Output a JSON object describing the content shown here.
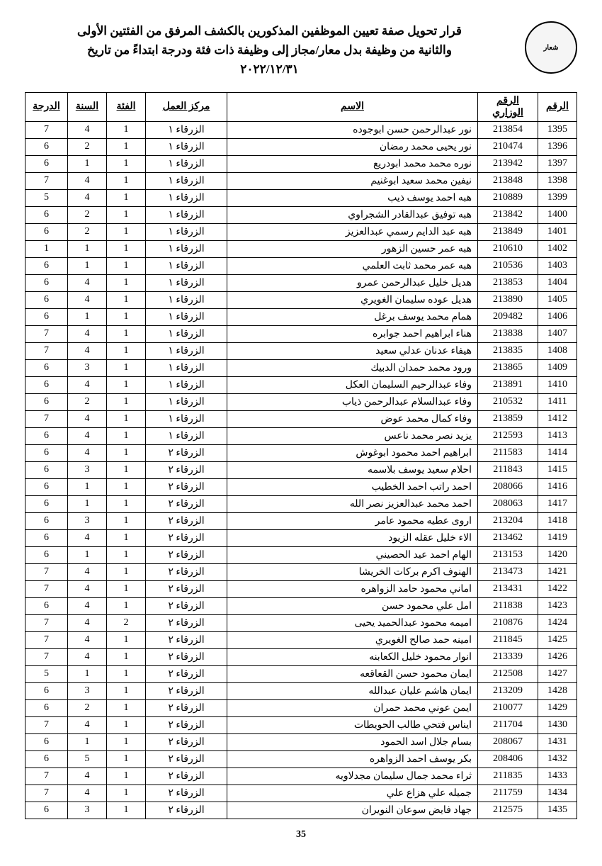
{
  "title_line1": "قرار تحويل صفة تعيين الموظفين المذكورين بالكشف المرفق من الفئتين الأولى",
  "title_line2": "والثانية من وظيفة بدل معار/مجاز إلى وظيفة ذات فئة ودرجة  ابتداءً من تاريخ",
  "title_line3": "٢٠٢٢/١٢/٣١",
  "logo_text": "شعار",
  "page_number": "35",
  "columns": [
    "الرقم",
    "الرقم الوزاري",
    "الاسم",
    "مركز العمل",
    "الفئة",
    "السنة",
    "الدرجة"
  ],
  "rows": [
    {
      "rank": "1395",
      "minid": "213854",
      "name": "نور عبدالرحمن حسن ابوجوده",
      "center": "الزرقاء ١",
      "cat": "1",
      "year": "4",
      "grade": "7"
    },
    {
      "rank": "1396",
      "minid": "210474",
      "name": "نور يحيى محمد رمضان",
      "center": "الزرقاء ١",
      "cat": "1",
      "year": "2",
      "grade": "6"
    },
    {
      "rank": "1397",
      "minid": "213942",
      "name": "نوره محمد محمد ابودريع",
      "center": "الزرقاء ١",
      "cat": "1",
      "year": "1",
      "grade": "6"
    },
    {
      "rank": "1398",
      "minid": "213848",
      "name": "نيفين محمد سعيد ابوغنيم",
      "center": "الزرقاء ١",
      "cat": "1",
      "year": "4",
      "grade": "7"
    },
    {
      "rank": "1399",
      "minid": "210889",
      "name": "هبه احمد يوسف ذيب",
      "center": "الزرقاء ١",
      "cat": "1",
      "year": "4",
      "grade": "5"
    },
    {
      "rank": "1400",
      "minid": "213842",
      "name": "هبه توفيق عبدالقادر الشجراوي",
      "center": "الزرقاء ١",
      "cat": "1",
      "year": "2",
      "grade": "6"
    },
    {
      "rank": "1401",
      "minid": "213849",
      "name": "هبه عبد الدايم رسمي عبدالعزيز",
      "center": "الزرقاء ١",
      "cat": "1",
      "year": "2",
      "grade": "6"
    },
    {
      "rank": "1402",
      "minid": "210610",
      "name": "هبه عمر حسين الزهور",
      "center": "الزرقاء ١",
      "cat": "1",
      "year": "1",
      "grade": "1"
    },
    {
      "rank": "1403",
      "minid": "210536",
      "name": "هبه عمر محمد ثابت العلمي",
      "center": "الزرقاء ١",
      "cat": "1",
      "year": "1",
      "grade": "6"
    },
    {
      "rank": "1404",
      "minid": "213853",
      "name": "هديل خليل عبدالرحمن عمرو",
      "center": "الزرقاء ١",
      "cat": "1",
      "year": "4",
      "grade": "6"
    },
    {
      "rank": "1405",
      "minid": "213890",
      "name": "هديل عوده سليمان الغويري",
      "center": "الزرقاء ١",
      "cat": "1",
      "year": "4",
      "grade": "6"
    },
    {
      "rank": "1406",
      "minid": "209482",
      "name": "همام محمد يوسف برغل",
      "center": "الزرقاء ١",
      "cat": "1",
      "year": "1",
      "grade": "6"
    },
    {
      "rank": "1407",
      "minid": "213838",
      "name": "هناء ابراهيم احمد جوابره",
      "center": "الزرقاء ١",
      "cat": "1",
      "year": "4",
      "grade": "7"
    },
    {
      "rank": "1408",
      "minid": "213835",
      "name": "هيفاء عدنان عدلي سعيد",
      "center": "الزرقاء ١",
      "cat": "1",
      "year": "4",
      "grade": "7"
    },
    {
      "rank": "1409",
      "minid": "213865",
      "name": "ورود محمد حمدان الدبيك",
      "center": "الزرقاء ١",
      "cat": "1",
      "year": "3",
      "grade": "6"
    },
    {
      "rank": "1410",
      "minid": "213891",
      "name": "وفاء عبدالرحيم السليمان العكل",
      "center": "الزرقاء ١",
      "cat": "1",
      "year": "4",
      "grade": "6"
    },
    {
      "rank": "1411",
      "minid": "210532",
      "name": "وفاء عبدالسلام عبدالرحمن ذياب",
      "center": "الزرقاء ١",
      "cat": "1",
      "year": "2",
      "grade": "6"
    },
    {
      "rank": "1412",
      "minid": "213859",
      "name": "وفاء كمال محمد عوض",
      "center": "الزرقاء ١",
      "cat": "1",
      "year": "4",
      "grade": "7"
    },
    {
      "rank": "1413",
      "minid": "212593",
      "name": "يزيد نصر محمد ناعس",
      "center": "الزرقاء ١",
      "cat": "1",
      "year": "4",
      "grade": "6"
    },
    {
      "rank": "1414",
      "minid": "211583",
      "name": "ابراهيم احمد محمود ابوغوش",
      "center": "الزرقاء ٢",
      "cat": "1",
      "year": "4",
      "grade": "6"
    },
    {
      "rank": "1415",
      "minid": "211843",
      "name": "احلام سعيد يوسف بلاسمه",
      "center": "الزرقاء ٢",
      "cat": "1",
      "year": "3",
      "grade": "6"
    },
    {
      "rank": "1416",
      "minid": "208066",
      "name": "احمد راتب احمد الخطيب",
      "center": "الزرقاء ٢",
      "cat": "1",
      "year": "1",
      "grade": "6"
    },
    {
      "rank": "1417",
      "minid": "208063",
      "name": "احمد محمد عبدالعزيز نصر الله",
      "center": "الزرقاء ٢",
      "cat": "1",
      "year": "1",
      "grade": "6"
    },
    {
      "rank": "1418",
      "minid": "213204",
      "name": "اروى عطيه محمود عامر",
      "center": "الزرقاء ٢",
      "cat": "1",
      "year": "3",
      "grade": "6"
    },
    {
      "rank": "1419",
      "minid": "213462",
      "name": "الاء خليل عقله الزيود",
      "center": "الزرقاء ٢",
      "cat": "1",
      "year": "4",
      "grade": "6"
    },
    {
      "rank": "1420",
      "minid": "213153",
      "name": "الهام احمد عيد الحصيني",
      "center": "الزرقاء ٢",
      "cat": "1",
      "year": "1",
      "grade": "6"
    },
    {
      "rank": "1421",
      "minid": "213473",
      "name": "الهنوف اكرم بركات الخريشا",
      "center": "الزرقاء ٢",
      "cat": "1",
      "year": "4",
      "grade": "7"
    },
    {
      "rank": "1422",
      "minid": "213431",
      "name": "اماني محمود حامد الزواهره",
      "center": "الزرقاء ٢",
      "cat": "1",
      "year": "4",
      "grade": "7"
    },
    {
      "rank": "1423",
      "minid": "211838",
      "name": "امل علي محمود حسن",
      "center": "الزرقاء ٢",
      "cat": "1",
      "year": "4",
      "grade": "6"
    },
    {
      "rank": "1424",
      "minid": "210876",
      "name": "اميمه محمود عبدالحميد يحيى",
      "center": "الزرقاء ٢",
      "cat": "2",
      "year": "4",
      "grade": "7"
    },
    {
      "rank": "1425",
      "minid": "211845",
      "name": "امينه حمد صالح الغويري",
      "center": "الزرقاء ٢",
      "cat": "1",
      "year": "4",
      "grade": "7"
    },
    {
      "rank": "1426",
      "minid": "213339",
      "name": "انوار محمود خليل الكعابنه",
      "center": "الزرقاء ٢",
      "cat": "1",
      "year": "4",
      "grade": "7"
    },
    {
      "rank": "1427",
      "minid": "212508",
      "name": "ايمان محمود حسن القعاقعه",
      "center": "الزرقاء ٢",
      "cat": "1",
      "year": "1",
      "grade": "5"
    },
    {
      "rank": "1428",
      "minid": "213209",
      "name": "ايمان هاشم عليان عبدالله",
      "center": "الزرقاء ٢",
      "cat": "1",
      "year": "3",
      "grade": "6"
    },
    {
      "rank": "1429",
      "minid": "210077",
      "name": "ايمن عوني محمد حمران",
      "center": "الزرقاء ٢",
      "cat": "1",
      "year": "2",
      "grade": "6"
    },
    {
      "rank": "1430",
      "minid": "211704",
      "name": "ايناس فتحي طالب الحويطات",
      "center": "الزرقاء ٢",
      "cat": "1",
      "year": "4",
      "grade": "7"
    },
    {
      "rank": "1431",
      "minid": "208067",
      "name": "بسام جلال اسد الحمود",
      "center": "الزرقاء ٢",
      "cat": "1",
      "year": "1",
      "grade": "6"
    },
    {
      "rank": "1432",
      "minid": "208406",
      "name": "بكر يوسف احمد الزواهره",
      "center": "الزرقاء ٢",
      "cat": "1",
      "year": "5",
      "grade": "6"
    },
    {
      "rank": "1433",
      "minid": "211835",
      "name": "ثراء محمد جمال سليمان مجدلاويه",
      "center": "الزرقاء ٢",
      "cat": "1",
      "year": "4",
      "grade": "7"
    },
    {
      "rank": "1434",
      "minid": "211759",
      "name": "جميله علي هزاع علي",
      "center": "الزرقاء ٢",
      "cat": "1",
      "year": "4",
      "grade": "7"
    },
    {
      "rank": "1435",
      "minid": "212575",
      "name": "جهاد فايض سوعان النويران",
      "center": "الزرقاء ٢",
      "cat": "1",
      "year": "3",
      "grade": "6"
    }
  ]
}
